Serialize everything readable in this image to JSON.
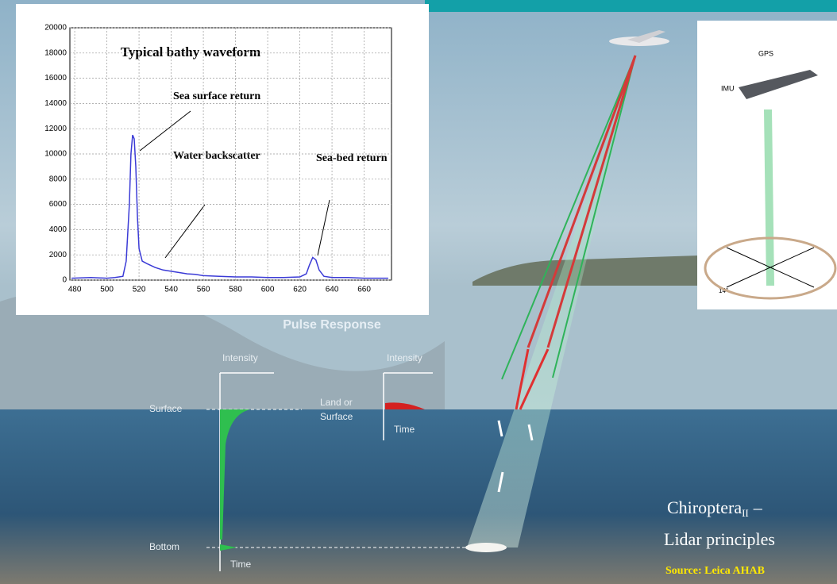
{
  "chart_data": {
    "type": "line",
    "title": "Typical bathy waveform",
    "annotations": [
      "Sea surface return",
      "Water backscatter",
      "Sea-bed return"
    ],
    "x": [
      478,
      490,
      500,
      505,
      510,
      512,
      514,
      515,
      516,
      517,
      518,
      519,
      520,
      522,
      525,
      530,
      535,
      540,
      545,
      550,
      555,
      560,
      570,
      580,
      590,
      600,
      610,
      620,
      624,
      626,
      628,
      630,
      632,
      635,
      640,
      650,
      660,
      675
    ],
    "values": [
      150,
      200,
      150,
      200,
      300,
      1500,
      6000,
      10000,
      11500,
      11200,
      9000,
      5000,
      2500,
      1500,
      1300,
      1000,
      800,
      700,
      600,
      500,
      450,
      350,
      300,
      250,
      250,
      200,
      200,
      250,
      500,
      1200,
      1800,
      1600,
      800,
      300,
      200,
      200,
      150,
      150
    ],
    "color": "#3b3bd6",
    "xlim": [
      477,
      677
    ],
    "ylim": [
      0,
      20000
    ],
    "xticks": [
      480,
      500,
      520,
      540,
      560,
      580,
      600,
      620,
      640,
      660
    ],
    "yticks": [
      0,
      2000,
      4000,
      6000,
      8000,
      10000,
      12000,
      14000,
      16000,
      18000,
      20000
    ],
    "grid": true
  },
  "pulse_response": {
    "title": "Pulse Response",
    "intensity_left": "Intensity",
    "intensity_right": "Intensity",
    "time_left": "Time",
    "time_right": "Time",
    "surface": "Surface",
    "bottom": "Bottom",
    "land_line1": "Land or",
    "land_line2": "Surface"
  },
  "system_inset": {
    "gps": "GPS",
    "imu": "IMU",
    "angle": "14°"
  },
  "caption": {
    "name": "Chiroptera",
    "subscript": "II",
    "dash": "–",
    "line2": "Lidar principles",
    "source": "Source: Leica AHAB"
  }
}
